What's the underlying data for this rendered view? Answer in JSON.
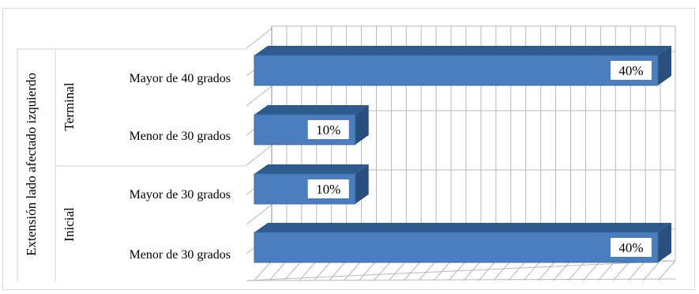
{
  "chart_data": {
    "type": "bar",
    "orientation": "horizontal",
    "three_d": true,
    "axis_title": "Extensión  lado afectado izquierdo",
    "groups": [
      {
        "name": "Terminal",
        "categories": [
          "Mayor de 40 grados",
          "Menor de 30 grados"
        ],
        "values": [
          40,
          10
        ],
        "labels": [
          "40%",
          "10%"
        ]
      },
      {
        "name": "Inicial",
        "categories": [
          "Mayor de 30 grados",
          "Menor de 30 grados"
        ],
        "values": [
          10,
          40
        ],
        "labels": [
          "10%",
          "40%"
        ]
      }
    ],
    "xlim": [
      0,
      40
    ],
    "grid": true,
    "legend": "none",
    "colors": {
      "bar_front": "#4a7ebf",
      "bar_top": "#2e5a8e",
      "bar_side": "#284f7e",
      "bar_edge": "#3b6ba5",
      "grid": "#b9b9b9"
    }
  }
}
